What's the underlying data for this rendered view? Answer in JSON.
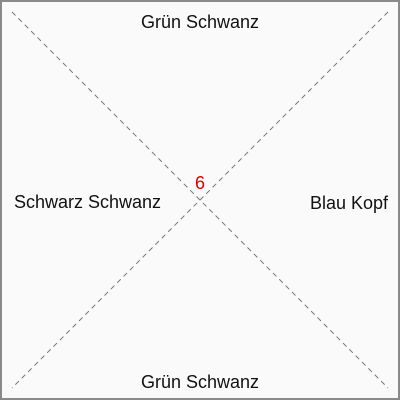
{
  "tile": {
    "number": "6",
    "number_color": "#e00000",
    "edges": {
      "top": "Grün Schwanz",
      "right": "Blau Kopf",
      "bottom": "Grün Schwanz",
      "left": "Schwarz Schwanz"
    }
  },
  "colors": {
    "background": "#fafafa",
    "border": "#8a8a8a",
    "diagonal": "#777777",
    "text": "#111111"
  }
}
